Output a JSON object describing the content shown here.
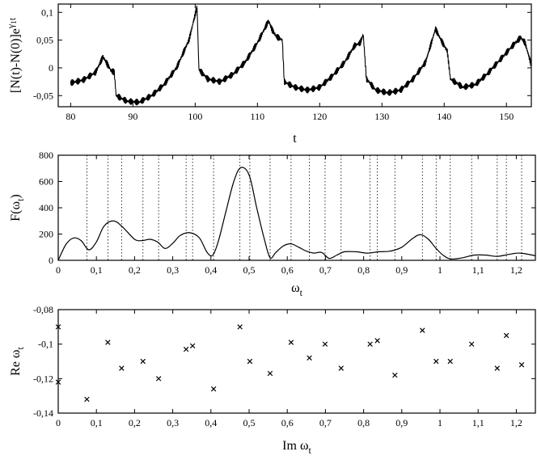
{
  "chart_data": [
    {
      "type": "line",
      "xlabel": "t",
      "ylabel_html": "[N(t)-N(0)]e",
      "ylabel_sup": "γ",
      "ylabel_sub": "1",
      "ylabel_suffix": "t",
      "xlim": [
        78,
        154
      ],
      "ylim": [
        -0.07,
        0.115
      ],
      "xticks": [
        80,
        90,
        100,
        110,
        120,
        130,
        140,
        150
      ],
      "xtick_labels": [
        "80",
        "90",
        "100",
        "110",
        "120",
        "130",
        "140",
        "150"
      ],
      "yticks": [
        0.1,
        0.05,
        0,
        -0.05
      ],
      "ytick_labels": [
        "0,1",
        "0,05",
        "0",
        "-0,05"
      ],
      "series": [
        {
          "x": [
            80,
            82,
            84,
            85.2,
            85.6,
            86.5,
            87,
            87.3,
            89,
            91,
            93,
            95,
            97,
            99,
            100.3,
            100.6,
            102,
            104,
            106,
            108,
            110,
            111.8,
            112.3,
            113,
            114,
            114.3,
            116,
            118,
            120,
            122,
            124,
            125.6,
            126.5,
            127,
            127.5,
            129,
            131,
            133,
            135,
            137,
            138.6,
            139.5,
            140.5,
            141,
            143,
            145,
            147,
            149,
            151,
            152.3,
            153,
            154
          ],
          "y": [
            -0.027,
            -0.022,
            -0.008,
            0.02,
            0.012,
            -0.005,
            -0.008,
            -0.05,
            -0.06,
            -0.062,
            -0.05,
            -0.03,
            0,
            0.05,
            0.11,
            -0.003,
            -0.02,
            -0.025,
            -0.012,
            0.01,
            0.045,
            0.085,
            0.07,
            0.057,
            0.05,
            -0.025,
            -0.035,
            -0.04,
            -0.035,
            -0.015,
            0.01,
            0.04,
            0.045,
            0.06,
            -0.02,
            -0.04,
            -0.045,
            -0.04,
            -0.02,
            0.01,
            0.07,
            0.05,
            0.03,
            -0.02,
            -0.035,
            -0.03,
            -0.01,
            0.015,
            0.04,
            0.055,
            0.045,
            0.005
          ],
          "noise_amplitude": 0.006
        }
      ]
    },
    {
      "type": "line",
      "xlabel": "ω",
      "xlabel_sub": "t",
      "ylabel": "F(ω",
      "ylabel_sub": "t",
      "ylabel_suffix": ")",
      "xlim": [
        0,
        1.25
      ],
      "ylim": [
        0,
        800
      ],
      "xticks": [
        0,
        0.1,
        0.2,
        0.3,
        0.4,
        0.5,
        0.6,
        0.7,
        0.8,
        0.9,
        1,
        1.1,
        1.2
      ],
      "xtick_labels": [
        "0",
        "0,1",
        "0,2",
        "0,3",
        "0,4",
        "0,5",
        "0,6",
        "0,7",
        "0,8",
        "0,9",
        "1",
        "1,1",
        "1,2"
      ],
      "yticks": [
        0,
        200,
        400,
        600,
        800
      ],
      "ytick_labels": [
        "0",
        "200",
        "400",
        "600",
        "800"
      ],
      "vlines": [
        0.075,
        0.13,
        0.166,
        0.222,
        0.263,
        0.335,
        0.352,
        0.407,
        0.476,
        0.502,
        0.555,
        0.61,
        0.658,
        0.699,
        0.741,
        0.817,
        0.836,
        0.882,
        0.954,
        0.99,
        1.027,
        1.083,
        1.15,
        1.174,
        1.214
      ],
      "series": [
        {
          "x": [
            0,
            0.02,
            0.04,
            0.06,
            0.08,
            0.1,
            0.12,
            0.145,
            0.17,
            0.2,
            0.22,
            0.24,
            0.26,
            0.28,
            0.3,
            0.32,
            0.345,
            0.37,
            0.39,
            0.405,
            0.42,
            0.44,
            0.46,
            0.478,
            0.5,
            0.52,
            0.54,
            0.555,
            0.57,
            0.59,
            0.61,
            0.63,
            0.65,
            0.67,
            0.69,
            0.71,
            0.73,
            0.75,
            0.78,
            0.81,
            0.84,
            0.87,
            0.9,
            0.93,
            0.95,
            0.97,
            0.99,
            1.01,
            1.03,
            1.06,
            1.09,
            1.12,
            1.15,
            1.18,
            1.21,
            1.25
          ],
          "y": [
            0,
            120,
            170,
            150,
            80,
            140,
            260,
            300,
            250,
            160,
            150,
            160,
            140,
            90,
            130,
            190,
            210,
            170,
            60,
            40,
            150,
            380,
            600,
            705,
            650,
            400,
            160,
            20,
            60,
            110,
            125,
            100,
            70,
            55,
            60,
            15,
            40,
            65,
            65,
            55,
            65,
            70,
            100,
            170,
            195,
            160,
            90,
            35,
            10,
            20,
            40,
            40,
            30,
            45,
            55,
            35
          ]
        }
      ]
    },
    {
      "type": "scatter",
      "xlabel": "Im ω",
      "xlabel_sub": "t",
      "ylabel": "Re ω",
      "ylabel_sub": "t",
      "xlim": [
        0,
        1.25
      ],
      "ylim": [
        -0.14,
        -0.08
      ],
      "xticks": [
        0,
        0.1,
        0.2,
        0.3,
        0.4,
        0.5,
        0.6,
        0.7,
        0.8,
        0.9,
        1,
        1.1,
        1.2
      ],
      "xtick_labels": [
        "0",
        "0,1",
        "0,2",
        "0,3",
        "0,4",
        "0,5",
        "0,6",
        "0,7",
        "0,8",
        "0,9",
        "1",
        "1,1",
        "1,2"
      ],
      "yticks": [
        -0.08,
        -0.1,
        -0.12,
        -0.14
      ],
      "ytick_labels": [
        "-0,08",
        "-0,1",
        "-0,12",
        "-0,14"
      ],
      "series": [
        {
          "marker": "x",
          "points": [
            [
              0,
              -0.09
            ],
            [
              0,
              -0.122
            ],
            [
              0.075,
              -0.132
            ],
            [
              0.13,
              -0.099
            ],
            [
              0.166,
              -0.114
            ],
            [
              0.222,
              -0.11
            ],
            [
              0.263,
              -0.12
            ],
            [
              0.335,
              -0.103
            ],
            [
              0.352,
              -0.101
            ],
            [
              0.407,
              -0.126
            ],
            [
              0.476,
              -0.09
            ],
            [
              0.502,
              -0.11
            ],
            [
              0.555,
              -0.117
            ],
            [
              0.61,
              -0.099
            ],
            [
              0.658,
              -0.108
            ],
            [
              0.699,
              -0.1
            ],
            [
              0.741,
              -0.114
            ],
            [
              0.817,
              -0.1
            ],
            [
              0.836,
              -0.098
            ],
            [
              0.882,
              -0.118
            ],
            [
              0.954,
              -0.092
            ],
            [
              0.99,
              -0.11
            ],
            [
              1.027,
              -0.11
            ],
            [
              1.083,
              -0.1
            ],
            [
              1.15,
              -0.114
            ],
            [
              1.174,
              -0.095
            ],
            [
              1.214,
              -0.112
            ]
          ]
        }
      ]
    }
  ]
}
